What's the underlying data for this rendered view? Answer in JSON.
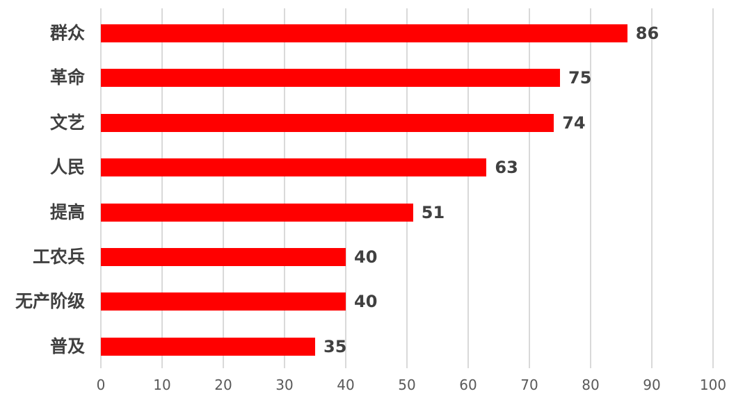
{
  "chart_data": {
    "type": "bar",
    "orientation": "horizontal",
    "title": "",
    "xlabel": "",
    "ylabel": "",
    "categories": [
      "群众",
      "革命",
      "文艺",
      "人民",
      "提高",
      "工农兵",
      "无产阶级",
      "普及"
    ],
    "values": [
      86,
      75,
      74,
      63,
      51,
      40,
      40,
      35
    ],
    "data_labels": [
      "86",
      "75",
      "74",
      "63",
      "51",
      "40",
      "40",
      "35"
    ],
    "xlim": [
      0,
      100
    ],
    "xticks": [
      0,
      10,
      20,
      30,
      40,
      50,
      60,
      70,
      80,
      90,
      100
    ],
    "grid": "vertical-gridlines-on",
    "legend": "none",
    "bar_color": "#ff0000",
    "label_color": "#404040",
    "tick_label_color": "#595959",
    "gridline_color": "#d9d9d9",
    "background_color": "#ffffff"
  }
}
